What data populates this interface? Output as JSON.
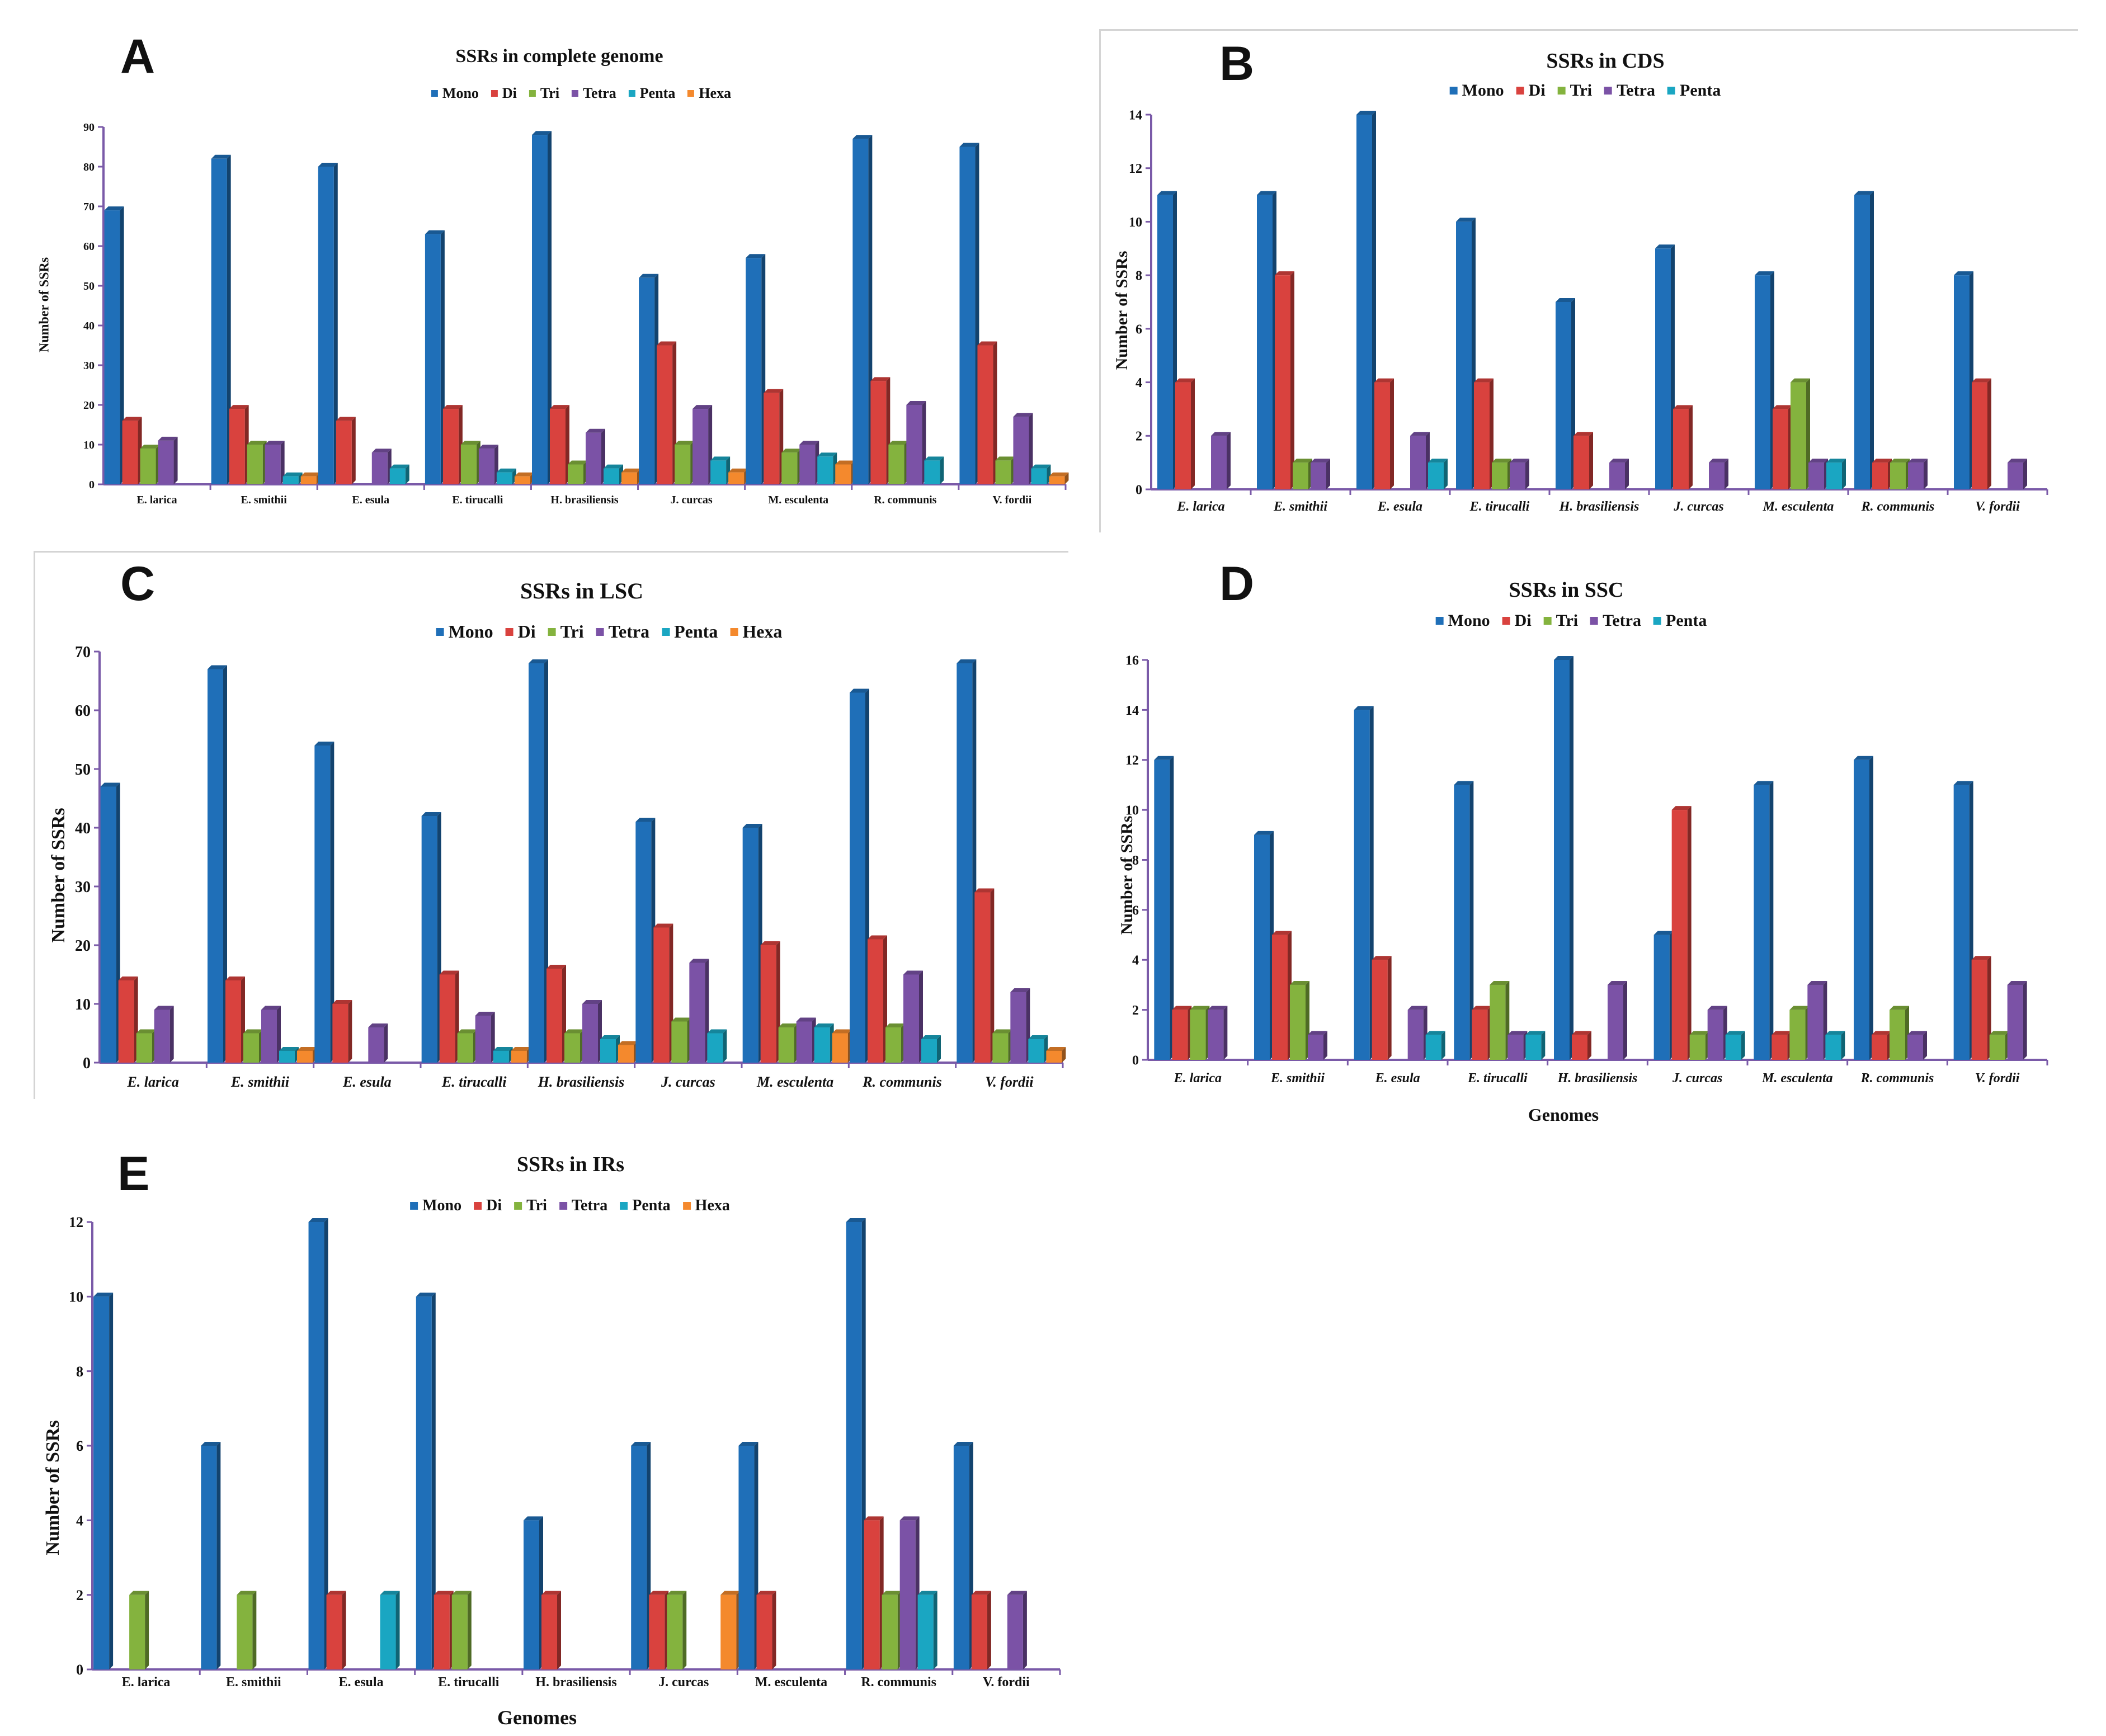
{
  "figure": {
    "ylabel": "Number of SSRs",
    "xlabel": "Genomes"
  },
  "colors": {
    "Mono": "#1f6fb8",
    "Di": "#d9423e",
    "Tri": "#84b33e",
    "Tetra": "#7b52a6",
    "Penta": "#1aa6c2",
    "Hexa": "#f4892d"
  },
  "chart_data": [
    {
      "panel": "A",
      "type": "bar",
      "title": "SSRs in complete genome",
      "ylabel": "Number of SSRs",
      "xlabel": "",
      "italic_ticks": false,
      "ylim": [
        0,
        90
      ],
      "yticks": [
        0,
        10,
        20,
        30,
        40,
        50,
        60,
        70,
        80,
        90
      ],
      "categories": [
        "E. larica",
        "E. smithii",
        "E. esula",
        "E. tirucalli",
        "H. brasiliensis",
        "J. curcas",
        "M. esculenta",
        "R. communis",
        "V. fordii"
      ],
      "series": [
        {
          "name": "Mono",
          "values": [
            69,
            82,
            80,
            63,
            88,
            52,
            57,
            87,
            85
          ]
        },
        {
          "name": "Di",
          "values": [
            16,
            19,
            16,
            19,
            19,
            35,
            23,
            26,
            35
          ]
        },
        {
          "name": "Tri",
          "values": [
            9,
            10,
            0,
            10,
            5,
            10,
            8,
            10,
            6
          ]
        },
        {
          "name": "Tetra",
          "values": [
            11,
            10,
            8,
            9,
            13,
            19,
            10,
            20,
            17
          ]
        },
        {
          "name": "Penta",
          "values": [
            0,
            2,
            4,
            3,
            4,
            6,
            7,
            6,
            4
          ]
        },
        {
          "name": "Hexa",
          "values": [
            0,
            2,
            0,
            2,
            3,
            3,
            5,
            0,
            2
          ]
        }
      ]
    },
    {
      "panel": "B",
      "type": "bar",
      "title": "SSRs in CDS",
      "ylabel": "Number of SSRs",
      "xlabel": "",
      "italic_ticks": true,
      "ylim": [
        0,
        14
      ],
      "yticks": [
        0,
        2,
        4,
        6,
        8,
        10,
        12,
        14
      ],
      "categories": [
        "E. larica",
        "E. smithii",
        "E. esula",
        "E. tirucalli",
        "H. brasiliensis",
        "J. curcas",
        "M. esculenta",
        "R. communis",
        "V. fordii"
      ],
      "series": [
        {
          "name": "Mono",
          "values": [
            11,
            11,
            14,
            10,
            7,
            9,
            8,
            11,
            8
          ]
        },
        {
          "name": "Di",
          "values": [
            4,
            8,
            4,
            4,
            2,
            3,
            3,
            1,
            4
          ]
        },
        {
          "name": "Tri",
          "values": [
            0,
            1,
            0,
            1,
            0,
            0,
            4,
            1,
            0
          ]
        },
        {
          "name": "Tetra",
          "values": [
            2,
            1,
            2,
            1,
            1,
            1,
            1,
            1,
            1
          ]
        },
        {
          "name": "Penta",
          "values": [
            0,
            0,
            1,
            0,
            0,
            0,
            1,
            0,
            0
          ]
        }
      ]
    },
    {
      "panel": "C",
      "type": "bar",
      "title": "SSRs in LSC",
      "ylabel": "Number of SSRs",
      "xlabel": "",
      "italic_ticks": true,
      "ylim": [
        0,
        70
      ],
      "yticks": [
        0,
        10,
        20,
        30,
        40,
        50,
        60,
        70
      ],
      "categories": [
        "E. larica",
        "E. smithii",
        "E. esula",
        "E. tirucalli",
        "H. brasiliensis",
        "J. curcas",
        "M. esculenta",
        "R. communis",
        "V. fordii"
      ],
      "series": [
        {
          "name": "Mono",
          "values": [
            47,
            67,
            54,
            42,
            68,
            41,
            40,
            63,
            68
          ]
        },
        {
          "name": "Di",
          "values": [
            14,
            14,
            10,
            15,
            16,
            23,
            20,
            21,
            29
          ]
        },
        {
          "name": "Tri",
          "values": [
            5,
            5,
            0,
            5,
            5,
            7,
            6,
            6,
            5
          ]
        },
        {
          "name": "Tetra",
          "values": [
            9,
            9,
            6,
            8,
            10,
            17,
            7,
            15,
            12
          ]
        },
        {
          "name": "Penta",
          "values": [
            0,
            2,
            0,
            2,
            4,
            5,
            6,
            4,
            4
          ]
        },
        {
          "name": "Hexa",
          "values": [
            0,
            2,
            0,
            2,
            3,
            0,
            5,
            0,
            2
          ]
        }
      ]
    },
    {
      "panel": "D",
      "type": "bar",
      "title": "SSRs in SSC",
      "ylabel": "Number of SSRs",
      "xlabel": "Genomes",
      "italic_ticks": true,
      "ylim": [
        0,
        16
      ],
      "yticks": [
        0,
        2,
        4,
        6,
        8,
        10,
        12,
        14,
        16
      ],
      "categories": [
        "E. larica",
        "E. smithii",
        "E. esula",
        "E. tirucalli",
        "H. brasiliensis",
        "J. curcas",
        "M. esculenta",
        "R. communis",
        "V. fordii"
      ],
      "series": [
        {
          "name": "Mono",
          "values": [
            12,
            9,
            14,
            11,
            16,
            5,
            11,
            12,
            11
          ]
        },
        {
          "name": "Di",
          "values": [
            2,
            5,
            4,
            2,
            1,
            10,
            1,
            1,
            4
          ]
        },
        {
          "name": "Tri",
          "values": [
            2,
            3,
            0,
            3,
            0,
            1,
            2,
            2,
            1
          ]
        },
        {
          "name": "Tetra",
          "values": [
            2,
            1,
            2,
            1,
            3,
            2,
            3,
            1,
            3
          ]
        },
        {
          "name": "Penta",
          "values": [
            0,
            0,
            1,
            1,
            0,
            1,
            1,
            0,
            0
          ]
        }
      ]
    },
    {
      "panel": "E",
      "type": "bar",
      "title": "SSRs in IRs",
      "ylabel": "Number of SSRs",
      "xlabel": "Genomes",
      "italic_ticks": false,
      "ylim": [
        0,
        12
      ],
      "yticks": [
        0,
        2,
        4,
        6,
        8,
        10,
        12
      ],
      "categories": [
        "E. larica",
        "E. smithii",
        "E. esula",
        "E. tirucalli",
        "H. brasiliensis",
        "J. curcas",
        "M. esculenta",
        "R. communis",
        "V. fordii"
      ],
      "series": [
        {
          "name": "Mono",
          "values": [
            10,
            6,
            12,
            10,
            4,
            6,
            6,
            12,
            6
          ]
        },
        {
          "name": "Di",
          "values": [
            0,
            0,
            2,
            2,
            2,
            2,
            2,
            4,
            2
          ]
        },
        {
          "name": "Tri",
          "values": [
            2,
            2,
            0,
            2,
            0,
            2,
            0,
            2,
            0
          ]
        },
        {
          "name": "Tetra",
          "values": [
            0,
            0,
            0,
            0,
            0,
            0,
            0,
            4,
            2
          ]
        },
        {
          "name": "Penta",
          "values": [
            0,
            0,
            2,
            0,
            0,
            0,
            0,
            2,
            0
          ]
        },
        {
          "name": "Hexa",
          "values": [
            0,
            0,
            0,
            0,
            0,
            2,
            0,
            0,
            0
          ]
        }
      ]
    }
  ]
}
